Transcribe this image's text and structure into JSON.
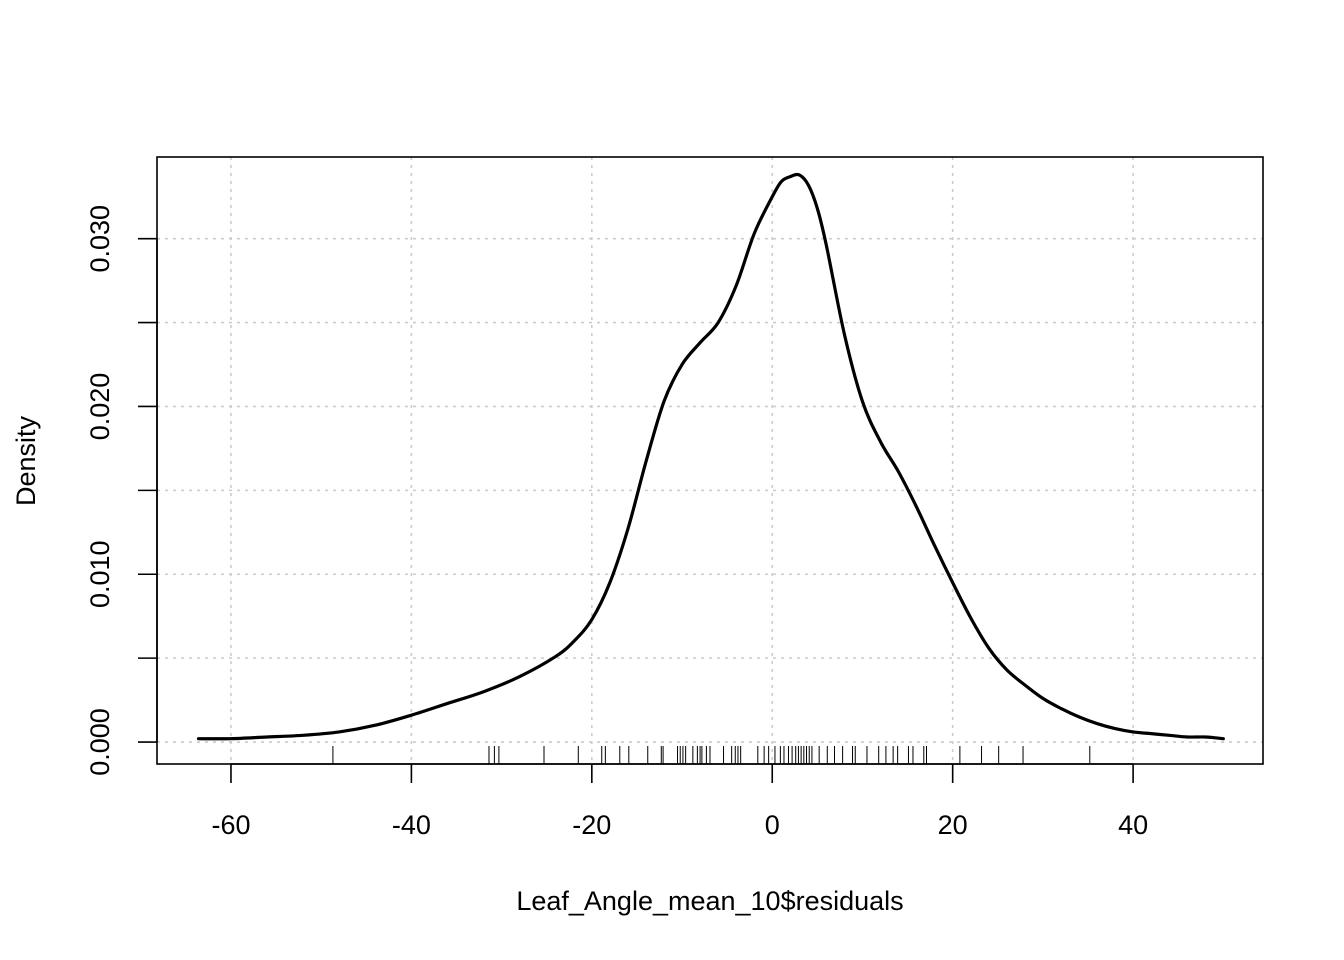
{
  "chart_data": {
    "type": "line",
    "title": "",
    "xlabel": "Leaf_Angle_mean_10$residuals",
    "ylabel": "Density",
    "xlim": [
      -68.2,
      54.4
    ],
    "ylim": [
      -0.00131,
      0.03487
    ],
    "grid": true,
    "grid_style": "dotted",
    "x_ticks": [
      -60,
      -40,
      -20,
      0,
      20,
      40
    ],
    "x_tick_labels": [
      "-60",
      "-40",
      "-20",
      "0",
      "20",
      "40"
    ],
    "y_ticks": [
      0.0,
      0.005,
      0.01,
      0.015,
      0.02,
      0.025,
      0.03
    ],
    "y_tick_labels": [
      "0.000",
      "",
      "0.010",
      "",
      "0.020",
      "",
      "0.030"
    ],
    "series": [
      {
        "color": "#000000",
        "x": [
          -63.6,
          -60,
          -56,
          -52,
          -48,
          -44,
          -40,
          -36,
          -32,
          -28,
          -24,
          -22,
          -20,
          -18,
          -16,
          -14,
          -12,
          -10,
          -8,
          -6,
          -4,
          -2,
          0,
          1,
          2,
          3,
          4,
          5,
          6,
          8,
          10,
          12,
          14,
          16,
          18,
          20,
          22,
          24,
          26,
          28,
          30,
          32,
          34,
          36,
          38,
          40,
          42,
          44,
          46,
          48,
          50
        ],
        "y": [
          0.0002,
          0.0002,
          0.0003,
          0.0004,
          0.0006,
          0.001,
          0.0016,
          0.0023,
          0.003,
          0.0039,
          0.0051,
          0.006,
          0.0073,
          0.0095,
          0.0127,
          0.0167,
          0.0203,
          0.0225,
          0.0238,
          0.025,
          0.0272,
          0.0303,
          0.0325,
          0.0334,
          0.0337,
          0.0338,
          0.0332,
          0.0318,
          0.0296,
          0.0243,
          0.0203,
          0.0179,
          0.0161,
          0.014,
          0.0117,
          0.0095,
          0.0074,
          0.0056,
          0.0043,
          0.0034,
          0.0026,
          0.002,
          0.0015,
          0.0011,
          0.0008,
          0.0006,
          0.0005,
          0.0004,
          0.0003,
          0.0003,
          0.0002
        ]
      }
    ],
    "rug": [
      -48.7,
      -31.4,
      -30.8,
      -30.3,
      -25.3,
      -21.5,
      -18.9,
      -18.5,
      -16.9,
      -15.9,
      -13.8,
      -12.3,
      -12.1,
      -10.5,
      -10.2,
      -9.9,
      -9.6,
      -8.8,
      -8.3,
      -8.0,
      -7.8,
      -7.3,
      -6.9,
      -5.4,
      -4.5,
      -4.1,
      -3.8,
      -3.5,
      -1.6,
      -0.9,
      -0.4,
      0.3,
      0.9,
      1.3,
      1.8,
      2.2,
      2.6,
      2.9,
      3.2,
      3.5,
      3.8,
      4.1,
      4.4,
      5.2,
      6.1,
      6.9,
      7.8,
      8.9,
      9.2,
      10.5,
      11.8,
      12.6,
      13.4,
      13.9,
      15.1,
      15.6,
      16.8,
      17.1,
      20.8,
      23.2,
      25.1,
      27.8,
      35.2
    ]
  }
}
